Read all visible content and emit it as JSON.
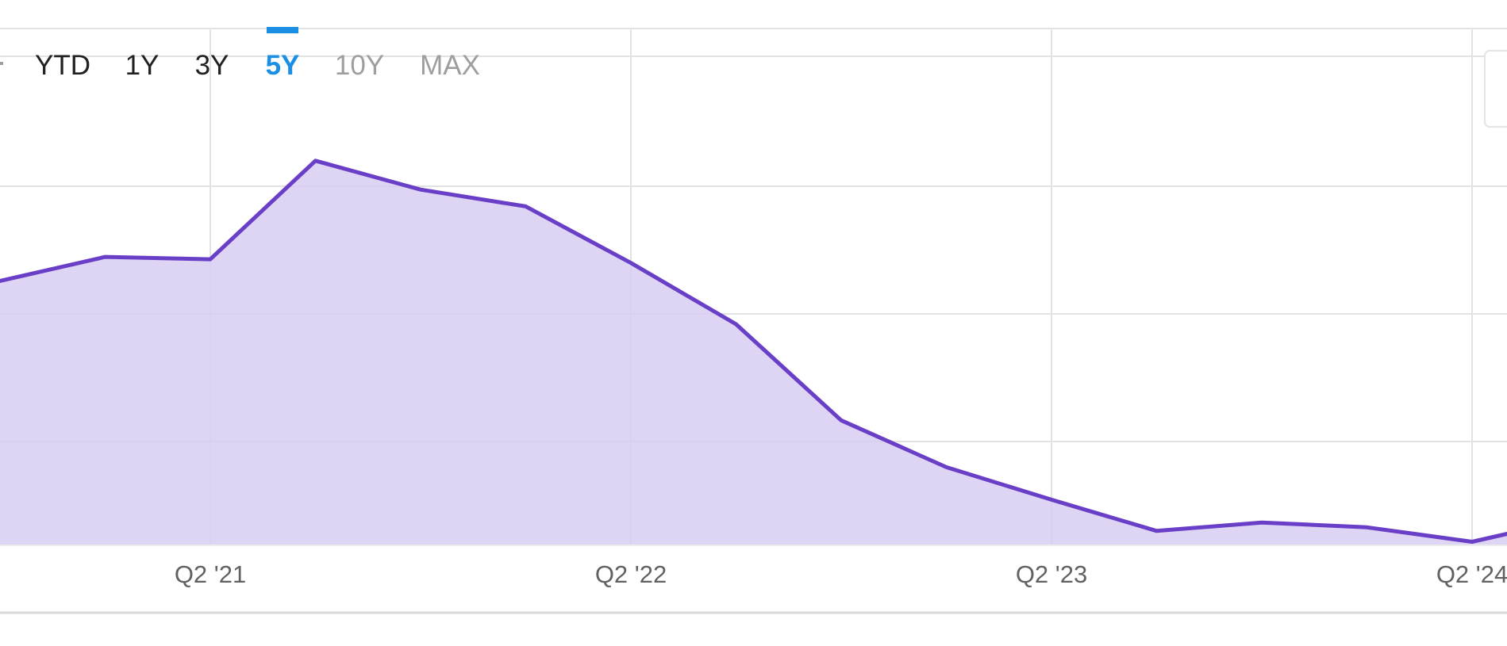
{
  "range_selector": {
    "options": [
      {
        "label": "YTD",
        "state": "enabled"
      },
      {
        "label": "1Y",
        "state": "enabled"
      },
      {
        "label": "3Y",
        "state": "enabled"
      },
      {
        "label": "5Y",
        "state": "selected"
      },
      {
        "label": "10Y",
        "state": "disabled"
      },
      {
        "label": "MAX",
        "state": "disabled"
      }
    ],
    "colors": {
      "enabled": "#212121",
      "selected": "#1a8fe3",
      "disabled": "#9e9e9e"
    }
  },
  "chart_data": {
    "type": "area",
    "x_ticks": [
      "Q2 '21",
      "Q2 '22",
      "Q2 '23",
      "Q2 '24"
    ],
    "series": [
      {
        "x": [
          "Q4 '20",
          "Q1 '21",
          "Q2 '21",
          "Q3 '21",
          "Q4 '21",
          "Q1 '22",
          "Q2 '22",
          "Q3 '22",
          "Q4 '22",
          "Q1 '23",
          "Q2 '23",
          "Q3 '23",
          "Q4 '23",
          "Q1 '24",
          "Q2 '24"
        ],
        "values": [
          3.4,
          3.6,
          3.58,
          4.4,
          4.16,
          4.02,
          3.55,
          3.04,
          2.24,
          1.85,
          1.58,
          1.32,
          1.39,
          1.35,
          1.23
        ],
        "color": "#6a3fc8",
        "fill": "#d8ccf1"
      }
    ],
    "ylim": [
      1.2,
      5.5
    ],
    "grid": true
  }
}
